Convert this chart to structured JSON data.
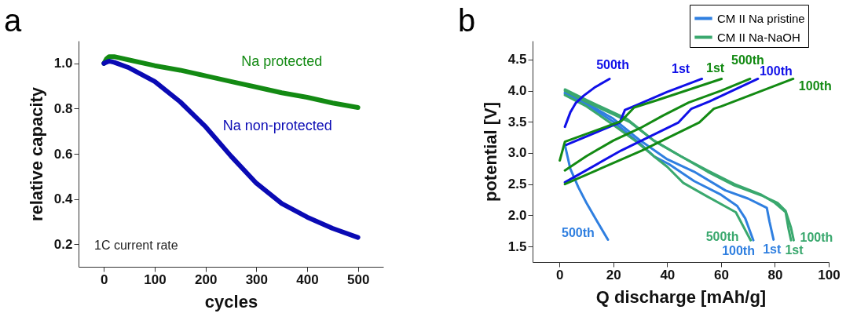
{
  "chart_data": [
    {
      "type": "line",
      "title": "a",
      "xlabel": "cycles",
      "ylabel": "relative capacity",
      "xlim": [
        -50,
        550
      ],
      "ylim": [
        0.1,
        1.1
      ],
      "xticks": [
        0,
        100,
        200,
        300,
        400,
        500
      ],
      "yticks": [
        0.2,
        0.4,
        0.6,
        0.8,
        {
          "value": 1,
          "label": "1.0"
        }
      ],
      "x": [
        0,
        5,
        10,
        20,
        50,
        100,
        150,
        200,
        250,
        300,
        350,
        400,
        450,
        500
      ],
      "series": [
        {
          "name": "Na protected",
          "color": "#138a13",
          "values": [
            1.0,
            1.02,
            1.03,
            1.03,
            1.015,
            0.99,
            0.97,
            0.945,
            0.92,
            0.895,
            0.87,
            0.85,
            0.825,
            0.805
          ]
        },
        {
          "name": "Na non-protected",
          "color": "#0a0ab4",
          "values": [
            1.0,
            1.005,
            1.01,
            1.005,
            0.98,
            0.92,
            0.83,
            0.72,
            0.59,
            0.47,
            0.38,
            0.32,
            0.27,
            0.23
          ]
        }
      ],
      "annotations": [
        "1C current rate"
      ]
    },
    {
      "type": "line",
      "title": "b",
      "xlabel": "Q discharge [mAh/g]",
      "ylabel": "potential [V]",
      "xlim": [
        -10,
        100
      ],
      "ylim": [
        1.25,
        4.8
      ],
      "xticks": [
        0,
        20,
        40,
        60,
        80,
        100
      ],
      "yticks": [
        1.5,
        {
          "value": 2,
          "label": "2.0"
        },
        2.5,
        {
          "value": 3,
          "label": "3.0"
        },
        3.5,
        {
          "value": 4,
          "label": "4.0"
        },
        4.5
      ],
      "legend": "top right",
      "series": [
        {
          "name": "CM II Na pristine",
          "color": "#2f7fe0",
          "x": [
            2,
            10,
            20,
            30,
            40,
            50,
            61.6,
            70,
            77,
            78,
            79.5
          ],
          "values": [
            3.97,
            3.8,
            3.55,
            3.2,
            2.9,
            2.7,
            2.4,
            2.27,
            2.12,
            1.9,
            1.61
          ]
        },
        {
          "color": "#2f7fe0",
          "x": [
            2,
            10,
            20,
            30,
            35,
            40.7,
            50,
            60,
            66,
            69,
            72
          ],
          "values": [
            3.95,
            3.78,
            3.5,
            3.15,
            2.95,
            2.82,
            2.55,
            2.33,
            2.15,
            1.95,
            1.6
          ]
        },
        {
          "color": "#2f7fe0",
          "x": [
            2,
            4,
            7,
            10,
            14,
            18
          ],
          "values": [
            3.13,
            2.75,
            2.45,
            2.2,
            1.9,
            1.61
          ]
        },
        {
          "name": "CM II Na-NaOH",
          "color": "#3aa86e",
          "x": [
            2,
            10,
            20,
            25,
            35,
            45,
            55,
            65,
            75,
            80,
            84,
            85,
            86
          ],
          "values": [
            4.02,
            3.85,
            3.65,
            3.55,
            3.2,
            2.95,
            2.72,
            2.5,
            2.33,
            2.2,
            2.05,
            1.8,
            1.6
          ]
        },
        {
          "color": "#3aa86e",
          "x": [
            2,
            10,
            20,
            26,
            35,
            45,
            55,
            65,
            75,
            81,
            84,
            86,
            87
          ],
          "values": [
            4.0,
            3.82,
            3.62,
            3.5,
            3.2,
            2.95,
            2.7,
            2.48,
            2.32,
            2.2,
            2.07,
            1.8,
            1.6
          ]
        },
        {
          "color": "#3aa86e",
          "x": [
            2,
            10,
            20,
            28,
            35,
            40,
            46,
            55,
            65.5,
            71
          ],
          "values": [
            3.93,
            3.75,
            3.45,
            3.2,
            2.95,
            2.78,
            2.52,
            2.3,
            2.05,
            1.6
          ]
        },
        {
          "color": "#1010e8",
          "x": [
            2.5,
            22.4,
            24.3,
            28.7,
            40,
            52.9
          ],
          "values": [
            3.13,
            3.49,
            3.69,
            3.77,
            3.98,
            4.19
          ]
        },
        {
          "color": "#1010e8",
          "x": [
            2,
            22.9,
            44.2,
            49,
            55.8,
            73.7
          ],
          "values": [
            2.53,
            3.04,
            3.49,
            3.71,
            3.83,
            4.19
          ]
        },
        {
          "color": "#1010e8",
          "x": [
            2,
            4,
            6,
            9,
            13,
            18.6
          ],
          "values": [
            3.42,
            3.65,
            3.8,
            3.92,
            4.05,
            4.19
          ]
        },
        {
          "color": "#138a13",
          "x": [
            0.1,
            2,
            22.9,
            27.7,
            36.4,
            60.2
          ],
          "values": [
            2.88,
            3.18,
            3.51,
            3.73,
            3.85,
            4.19
          ]
        },
        {
          "color": "#138a13",
          "x": [
            2,
            30.6,
            51.9,
            57.3,
            60.2,
            86.8
          ],
          "values": [
            2.5,
            3.04,
            3.49,
            3.71,
            3.75,
            4.19
          ]
        },
        {
          "color": "#138a13",
          "x": [
            2,
            10,
            20,
            30,
            38.4,
            48,
            60,
            70.8
          ],
          "values": [
            2.72,
            2.95,
            3.2,
            3.4,
            3.6,
            3.81,
            4.0,
            4.19
          ]
        }
      ],
      "annotations": [
        {
          "text": "500th",
          "x": 18.6,
          "y": 4.19
        },
        {
          "text": "1st",
          "x": 52.9,
          "y": 4.19
        },
        {
          "text": "1st",
          "x": 60.2,
          "y": 4.19
        },
        {
          "text": "500th",
          "x": 70.8,
          "y": 4.19
        },
        {
          "text": "100th",
          "x": 73.7,
          "y": 4.19
        },
        {
          "text": "100th",
          "x": 86.8,
          "y": 4.19
        },
        {
          "text": "500th",
          "x": 18,
          "y": 1.61
        },
        {
          "text": "500th",
          "x": 71,
          "y": 1.6
        },
        {
          "text": "100th",
          "x": 72,
          "y": 1.6
        },
        {
          "text": "1st",
          "x": 79.5,
          "y": 1.61
        },
        {
          "text": "1st",
          "x": 86,
          "y": 1.6
        },
        {
          "text": "100th",
          "x": 87,
          "y": 1.6
        }
      ]
    }
  ]
}
